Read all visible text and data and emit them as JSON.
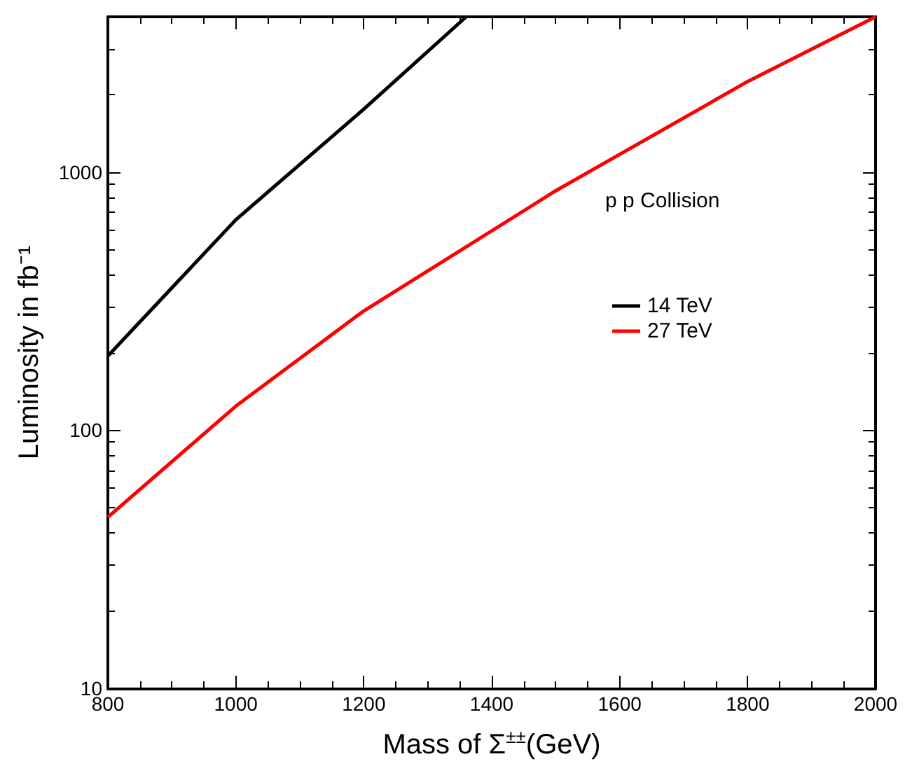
{
  "chart_data": {
    "type": "line",
    "xlabel": "Mass of Σ$^{±±}$(GeV)",
    "ylabel": "Luminosity in fb⁻¹",
    "annotations": [
      "p p Collision"
    ],
    "series": [
      {
        "name": "14 TeV",
        "color": "#000000",
        "x": [
          800,
          1000,
          1200,
          1360
        ],
        "values": [
          194,
          654,
          1755,
          4000
        ]
      },
      {
        "name": "27 TeV",
        "color": "#ff0000",
        "x": [
          800,
          1000,
          1200,
          1500,
          1800,
          2000
        ],
        "values": [
          46,
          124,
          290,
          847,
          2245,
          4000
        ]
      }
    ],
    "xlim": [
      800,
      2000
    ],
    "xticks": [
      800,
      1000,
      1200,
      1400,
      1600,
      1800,
      2000
    ],
    "ylim": [
      10,
      4000
    ],
    "yticks": [
      10,
      100,
      1000
    ],
    "log": "y",
    "grid": false,
    "legend": "right",
    "marker": "none",
    "line_style": "solid"
  }
}
